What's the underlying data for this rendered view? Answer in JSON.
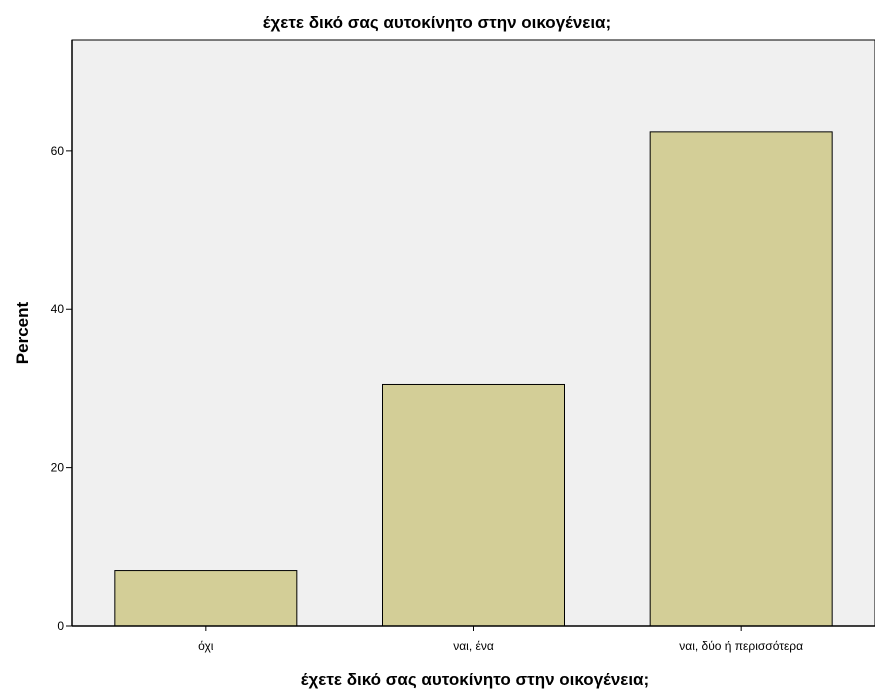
{
  "chart_data": {
    "type": "bar",
    "title": "έχετε δικό σας αυτοκίνητο στην οικογένεια;",
    "xlabel": "έχετε δικό σας αυτοκίνητο στην οικογένεια;",
    "ylabel": "Percent",
    "categories": [
      "όχι",
      "ναι, ένα",
      "ναι, δύο ή περισσότερα"
    ],
    "values": [
      7.0,
      30.5,
      62.4
    ],
    "ylim": [
      0,
      74
    ],
    "yticks": [
      0,
      20,
      40,
      60
    ],
    "grid": false,
    "colors": {
      "bar_fill": "#d3ce97",
      "bar_stroke": "#000000",
      "plot_bg": "#f0f0f0",
      "page_bg": "#ffffff"
    }
  }
}
